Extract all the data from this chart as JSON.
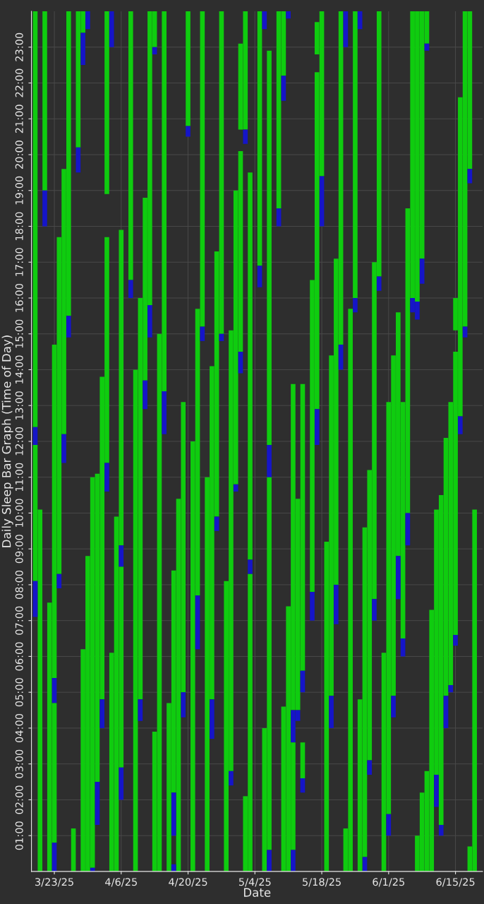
{
  "chart_data": {
    "type": "bar",
    "xlabel": "Date",
    "ylabel": "Daily Sleep Bar Graph (Time of Day)",
    "grid": true,
    "x": [
      "2025-03-19",
      "2025-03-20",
      "2025-03-21",
      "2025-03-22",
      "2025-03-23",
      "2025-03-24",
      "2025-03-25",
      "2025-03-26",
      "2025-03-27",
      "2025-03-28",
      "2025-03-29",
      "2025-03-30",
      "2025-03-31",
      "2025-04-01",
      "2025-04-02",
      "2025-04-03",
      "2025-04-04",
      "2025-04-05",
      "2025-04-06",
      "2025-04-07",
      "2025-04-08",
      "2025-04-09",
      "2025-04-10",
      "2025-04-11",
      "2025-04-12",
      "2025-04-13",
      "2025-04-14",
      "2025-04-15",
      "2025-04-16",
      "2025-04-17",
      "2025-04-18",
      "2025-04-19",
      "2025-04-20",
      "2025-04-21",
      "2025-04-22",
      "2025-04-23",
      "2025-04-24",
      "2025-04-25",
      "2025-04-26",
      "2025-04-27",
      "2025-04-28",
      "2025-04-29",
      "2025-04-30",
      "2025-05-01",
      "2025-05-02",
      "2025-05-03",
      "2025-05-04",
      "2025-05-05",
      "2025-05-06",
      "2025-05-07",
      "2025-05-08",
      "2025-05-09",
      "2025-05-10",
      "2025-05-11",
      "2025-05-12",
      "2025-05-13",
      "2025-05-14",
      "2025-05-15",
      "2025-05-16",
      "2025-05-17",
      "2025-05-18",
      "2025-05-19",
      "2025-05-20",
      "2025-05-21",
      "2025-05-22",
      "2025-05-23",
      "2025-05-24",
      "2025-05-25",
      "2025-05-26",
      "2025-05-27",
      "2025-05-28",
      "2025-05-29",
      "2025-05-30",
      "2025-05-31",
      "2025-06-01",
      "2025-06-02",
      "2025-06-03",
      "2025-06-04",
      "2025-06-05",
      "2025-06-06",
      "2025-06-07",
      "2025-06-08",
      "2025-06-09",
      "2025-06-10",
      "2025-06-11",
      "2025-06-12",
      "2025-06-13",
      "2025-06-14",
      "2025-06-15",
      "2025-06-16",
      "2025-06-17",
      "2025-06-18",
      "2025-06-19"
    ],
    "series": [
      {
        "color": "#0fcc0f",
        "base": [
          12.4,
          0,
          19.0,
          0,
          5.4,
          8.3,
          12.2,
          15.5,
          0,
          20.2,
          23.4,
          null,
          0.1,
          2.5,
          4.8,
          18.9,
          null,
          0,
          9.1,
          null,
          16.5,
          0,
          4.8,
          13.7,
          15.8,
          23.0,
          0,
          13.4,
          0,
          2.2,
          0,
          5.0,
          20.8,
          0,
          7.7,
          15.2,
          0,
          4.8,
          9.9,
          15.0,
          0,
          2.8,
          10.8,
          20.7,
          20.7,
          8.7,
          null,
          16.9,
          null,
          11.9,
          null,
          18.5,
          22.2,
          null,
          4.5,
          4.5,
          5.6,
          null,
          7.8,
          22.8,
          19.4,
          0,
          4.9,
          8.0,
          14.7,
          null,
          0,
          16.0,
          null,
          0.4,
          3.1,
          7.6,
          16.6,
          0,
          1.6,
          4.9,
          8.8,
          6.5,
          10.0,
          16.0,
          15.9,
          17.1,
          23.1,
          0,
          2.7,
          1.3,
          4.9,
          5.2,
          15.1,
          12.7,
          15.2,
          19.6,
          0
        ],
        "values": [
          11.6,
          10.1,
          5.0,
          7.5,
          9.3,
          9.4,
          7.4,
          8.5,
          1.2,
          3.8,
          0.6,
          null,
          10.9,
          8.6,
          9.0,
          5.1,
          null,
          9.9,
          8.8,
          null,
          7.5,
          14.0,
          11.2,
          5.1,
          8.2,
          1.0,
          15.0,
          10.6,
          4.7,
          6.2,
          10.4,
          8.1,
          3.2,
          12.0,
          8.0,
          8.8,
          11.0,
          9.3,
          7.4,
          9.0,
          8.1,
          12.3,
          8.2,
          2.4,
          3.3,
          10.8,
          null,
          7.1,
          null,
          11.0,
          null,
          5.5,
          1.8,
          null,
          9.1,
          5.9,
          8.0,
          null,
          8.7,
          0.9,
          4.6,
          9.2,
          9.5,
          9.1,
          9.3,
          null,
          15.7,
          8.0,
          null,
          9.2,
          8.1,
          9.4,
          7.4,
          6.1,
          11.5,
          9.5,
          6.8,
          6.6,
          8.5,
          8.0,
          8.1,
          6.9,
          0.9,
          7.3,
          7.4,
          9.2,
          7.2,
          7.9,
          0.9,
          8.9,
          8.8,
          4.4,
          10.1
        ]
      },
      {
        "color": "#1515c8",
        "base": [
          11.9,
          null,
          18.0,
          null,
          4.7,
          7.9,
          11.4,
          14.9,
          null,
          19.5,
          22.5,
          23.5,
          0,
          1.3,
          4.0,
          null,
          23.0,
          null,
          8.5,
          null,
          16.0,
          null,
          4.2,
          12.9,
          14.9,
          22.8,
          null,
          12.2,
          null,
          1.0,
          null,
          4.3,
          20.5,
          null,
          6.2,
          14.8,
          null,
          3.7,
          9.5,
          14.8,
          null,
          2.4,
          10.6,
          null,
          20.3,
          8.3,
          null,
          16.3,
          23.5,
          11.0,
          null,
          18.0,
          21.5,
          23.8,
          3.6,
          4.2,
          5.0,
          null,
          7.0,
          null,
          18.0,
          null,
          4.0,
          6.9,
          14.0,
          23.0,
          null,
          15.6,
          23.5,
          0,
          2.7,
          7.0,
          16.2,
          null,
          1.0,
          4.3,
          7.6,
          6.0,
          9.1,
          15.6,
          15.4,
          16.4,
          22.9,
          null,
          1.8,
          1.0,
          4.0,
          5.0,
          null,
          12.2,
          14.9,
          19.2,
          null
        ],
        "values": [
          0.5,
          null,
          1.0,
          null,
          0.7,
          0.4,
          0.8,
          0.6,
          null,
          0.7,
          0.9,
          0.5,
          0.1,
          1.2,
          0.8,
          null,
          1.0,
          null,
          0.6,
          null,
          0.5,
          null,
          0.6,
          0.8,
          0.9,
          0.2,
          null,
          1.2,
          null,
          1.2,
          null,
          0.7,
          0.3,
          null,
          1.5,
          0.4,
          null,
          1.1,
          0.4,
          0.2,
          null,
          0.4,
          0.2,
          null,
          0.4,
          0.4,
          null,
          0.6,
          0.5,
          0.9,
          null,
          0.5,
          0.7,
          0.2,
          0.9,
          0.3,
          0.6,
          null,
          0.8,
          null,
          1.4,
          null,
          0.9,
          1.1,
          0.7,
          1.0,
          null,
          0.4,
          0.5,
          0.4,
          0.4,
          0.6,
          0.4,
          null,
          0.6,
          0.6,
          1.2,
          0.5,
          0.9,
          0.4,
          0.5,
          0.7,
          0.2,
          null,
          0.9,
          0.3,
          0.9,
          0.2,
          null,
          0.5,
          0.3,
          0.4,
          null
        ]
      },
      {
        "color": "#0fcc0f",
        "base": [
          8.1,
          null,
          null,
          null,
          0.8,
          null,
          null,
          null,
          null,
          null,
          0,
          0,
          null,
          null,
          null,
          11.4,
          0,
          null,
          2.9,
          null,
          null,
          null,
          null,
          null,
          null,
          0,
          null,
          null,
          null,
          null,
          null,
          null,
          null,
          null,
          null,
          null,
          null,
          null,
          null,
          null,
          null,
          null,
          null,
          14.5,
          0,
          0,
          null,
          null,
          0,
          0.6,
          null,
          null,
          0,
          0,
          0.6,
          null,
          2.6,
          null,
          null,
          12.9,
          null,
          null,
          null,
          null,
          null,
          0,
          null,
          null,
          0,
          null,
          null,
          null,
          null,
          null,
          null,
          null,
          null,
          null,
          null,
          null,
          0,
          0,
          0,
          null,
          null,
          null,
          null,
          null,
          6.6,
          null,
          null,
          0,
          null
        ],
        "values": [
          3.8,
          null,
          null,
          null,
          3.9,
          null,
          null,
          null,
          null,
          null,
          6.2,
          8.8,
          null,
          null,
          null,
          6.3,
          6.1,
          null,
          5.6,
          null,
          null,
          null,
          null,
          null,
          null,
          3.9,
          null,
          null,
          null,
          null,
          null,
          null,
          null,
          null,
          null,
          null,
          null,
          null,
          null,
          null,
          null,
          null,
          null,
          5.6,
          2.1,
          8.3,
          null,
          null,
          4.0,
          10.4,
          null,
          null,
          4.6,
          7.4,
          3.0,
          null,
          1.0,
          null,
          null,
          9.4,
          null,
          null,
          null,
          null,
          null,
          1.2,
          null,
          null,
          4.8,
          null,
          null,
          null,
          null,
          null,
          null,
          null,
          null,
          null,
          null,
          null,
          1.0,
          2.2,
          2.8,
          null,
          null,
          null,
          null,
          null,
          7.9,
          null,
          null,
          0.7,
          null
        ]
      },
      {
        "color": "#1515c8",
        "base": [
          7.1,
          null,
          null,
          null,
          0,
          null,
          null,
          null,
          null,
          null,
          null,
          null,
          null,
          null,
          null,
          10.6,
          null,
          null,
          2.0,
          null,
          null,
          null,
          null,
          null,
          null,
          null,
          null,
          null,
          null,
          0,
          null,
          null,
          null,
          null,
          null,
          null,
          null,
          null,
          null,
          null,
          null,
          null,
          null,
          13.9,
          null,
          null,
          null,
          null,
          null,
          0,
          null,
          null,
          null,
          null,
          0,
          null,
          2.2,
          null,
          null,
          11.9,
          null,
          null,
          null,
          null,
          null,
          null,
          null,
          null,
          null,
          null,
          null,
          null,
          null,
          null,
          null,
          null,
          null,
          null,
          null,
          null,
          null,
          null,
          null,
          null,
          null,
          null,
          null,
          null,
          6.3,
          null,
          null,
          null,
          null
        ],
        "values": [
          1.0,
          null,
          null,
          null,
          0.8,
          null,
          null,
          null,
          null,
          null,
          null,
          null,
          null,
          null,
          null,
          0.8,
          null,
          null,
          0.9,
          null,
          null,
          null,
          null,
          null,
          null,
          null,
          null,
          null,
          null,
          0.2,
          null,
          null,
          null,
          null,
          null,
          null,
          null,
          null,
          null,
          null,
          null,
          null,
          null,
          0.6,
          null,
          null,
          null,
          null,
          null,
          0.6,
          null,
          null,
          null,
          null,
          0.6,
          null,
          0.4,
          null,
          null,
          1.0,
          null,
          null,
          null,
          null,
          null,
          null,
          null,
          null,
          null,
          null,
          null,
          null,
          null,
          null,
          null,
          null,
          null,
          null,
          null,
          null,
          null,
          null,
          null,
          null,
          null,
          null,
          null,
          null,
          0.3,
          null,
          null,
          null,
          null
        ]
      }
    ],
    "xlim": [
      "2025-03-18T05:00",
      "2025-06-20T16:00"
    ],
    "xticks": [
      {
        "value": "2025-03-23",
        "label": "3/23/25"
      },
      {
        "value": "2025-04-06",
        "label": "4/6/25"
      },
      {
        "value": "2025-04-20",
        "label": "4/20/25"
      },
      {
        "value": "2025-05-04",
        "label": "5/4/25"
      },
      {
        "value": "2025-05-18",
        "label": "5/18/25"
      },
      {
        "value": "2025-06-01",
        "label": "6/1/25"
      },
      {
        "value": "2025-06-15",
        "label": "6/15/25"
      }
    ],
    "ylim": [
      0,
      24
    ],
    "yticks": [
      {
        "value": 1,
        "label": "01:00"
      },
      {
        "value": 2,
        "label": "02:00"
      },
      {
        "value": 3,
        "label": "03:00"
      },
      {
        "value": 4,
        "label": "04:00"
      },
      {
        "value": 5,
        "label": "05:00"
      },
      {
        "value": 6,
        "label": "06:00"
      },
      {
        "value": 7,
        "label": "07:00"
      },
      {
        "value": 8,
        "label": "08:00"
      },
      {
        "value": 9,
        "label": "09:00"
      },
      {
        "value": 10,
        "label": "10:00"
      },
      {
        "value": 11,
        "label": "11:00"
      },
      {
        "value": 12,
        "label": "12:00"
      },
      {
        "value": 13,
        "label": "13:00"
      },
      {
        "value": 14,
        "label": "14:00"
      },
      {
        "value": 15,
        "label": "15:00"
      },
      {
        "value": 16,
        "label": "16:00"
      },
      {
        "value": 17,
        "label": "17:00"
      },
      {
        "value": 18,
        "label": "18:00"
      },
      {
        "value": 19,
        "label": "19:00"
      },
      {
        "value": 20,
        "label": "20:00"
      },
      {
        "value": 21,
        "label": "21:00"
      },
      {
        "value": 22,
        "label": "22:00"
      },
      {
        "value": 23,
        "label": "23:00"
      }
    ]
  }
}
